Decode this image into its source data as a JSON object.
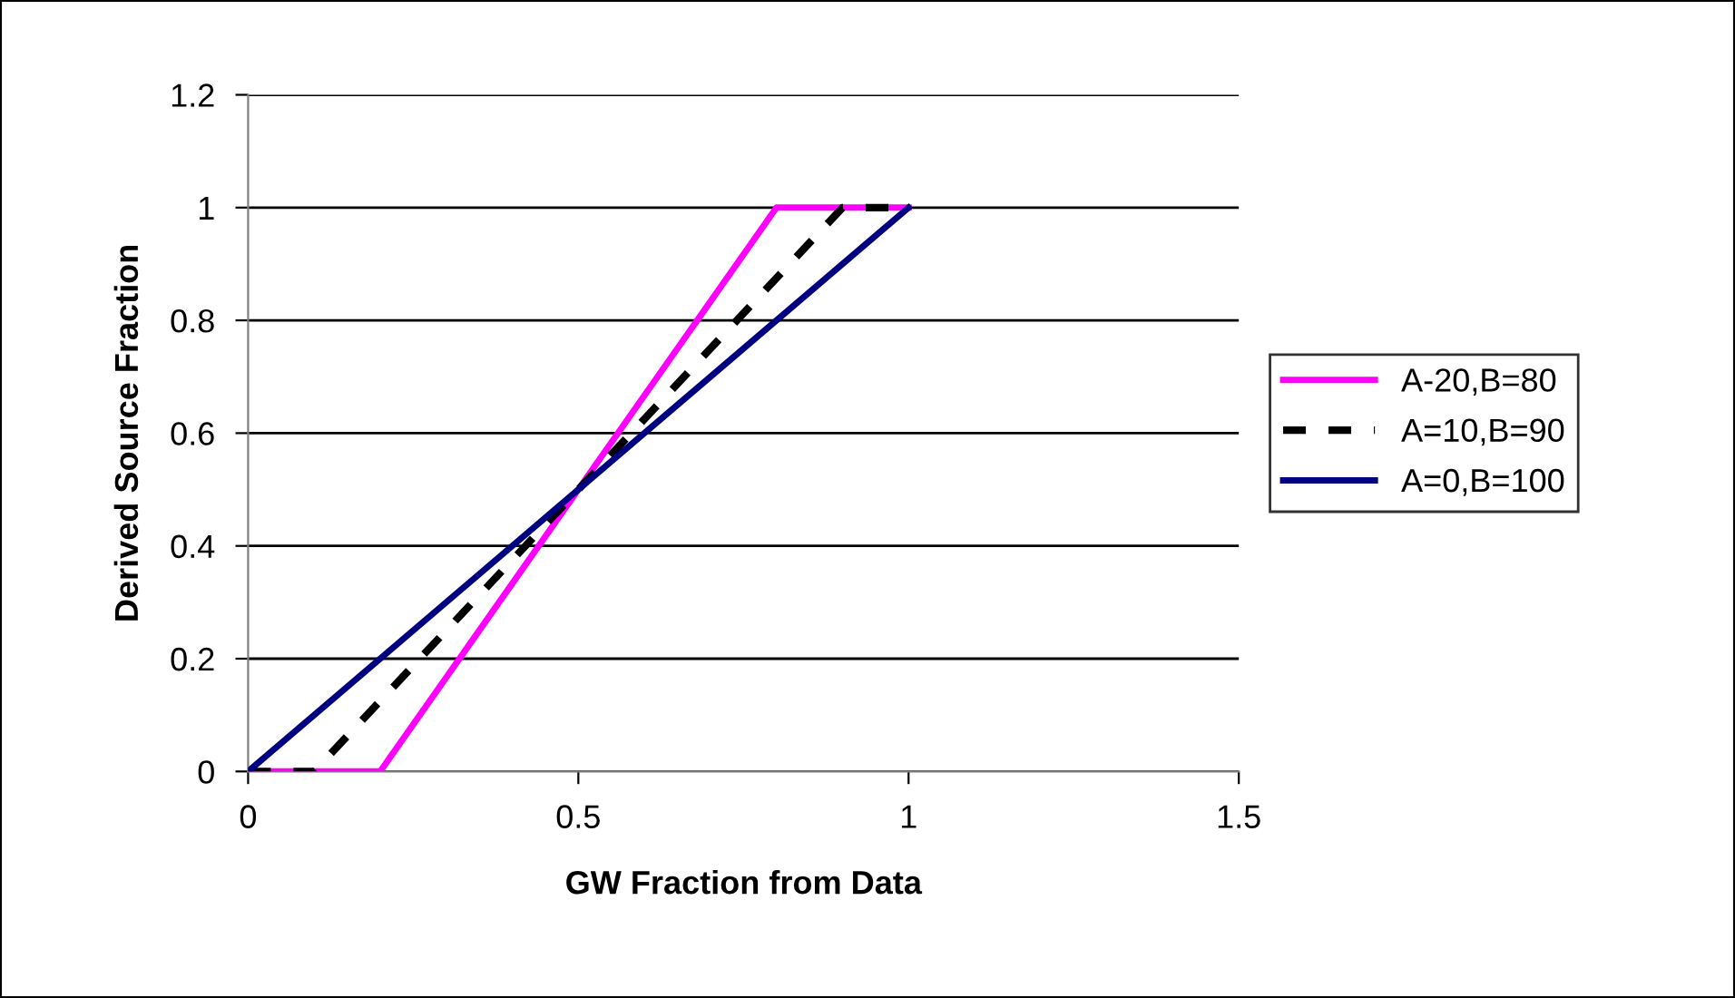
{
  "chart_data": {
    "type": "line",
    "xlabel": "GW Fraction from Data",
    "ylabel": "Derived Source Fraction",
    "xlim": [
      0,
      1.5
    ],
    "xticks": [
      0,
      0.5,
      1,
      1.5
    ],
    "ylim": [
      0,
      1.2
    ],
    "yticks": [
      0,
      0.2,
      0.4,
      0.6,
      0.8,
      1,
      1.2
    ],
    "grid": "y",
    "legend": "right",
    "marker": "none",
    "series": [
      {
        "name": "A-20,B=80",
        "color": "#ff00ff",
        "line_style": "solid",
        "x": [
          0,
          0.2,
          0.8,
          1
        ],
        "values": [
          0,
          0,
          1,
          1
        ]
      },
      {
        "name": "A=10,B=90",
        "color": "#000000",
        "line_style": "dashed",
        "x": [
          0,
          0.1,
          0.9,
          1
        ],
        "values": [
          0,
          0,
          1,
          1
        ]
      },
      {
        "name": "A=0,B=100",
        "color": "#000080",
        "line_style": "solid",
        "x": [
          0,
          1
        ],
        "values": [
          0,
          1
        ]
      }
    ]
  }
}
